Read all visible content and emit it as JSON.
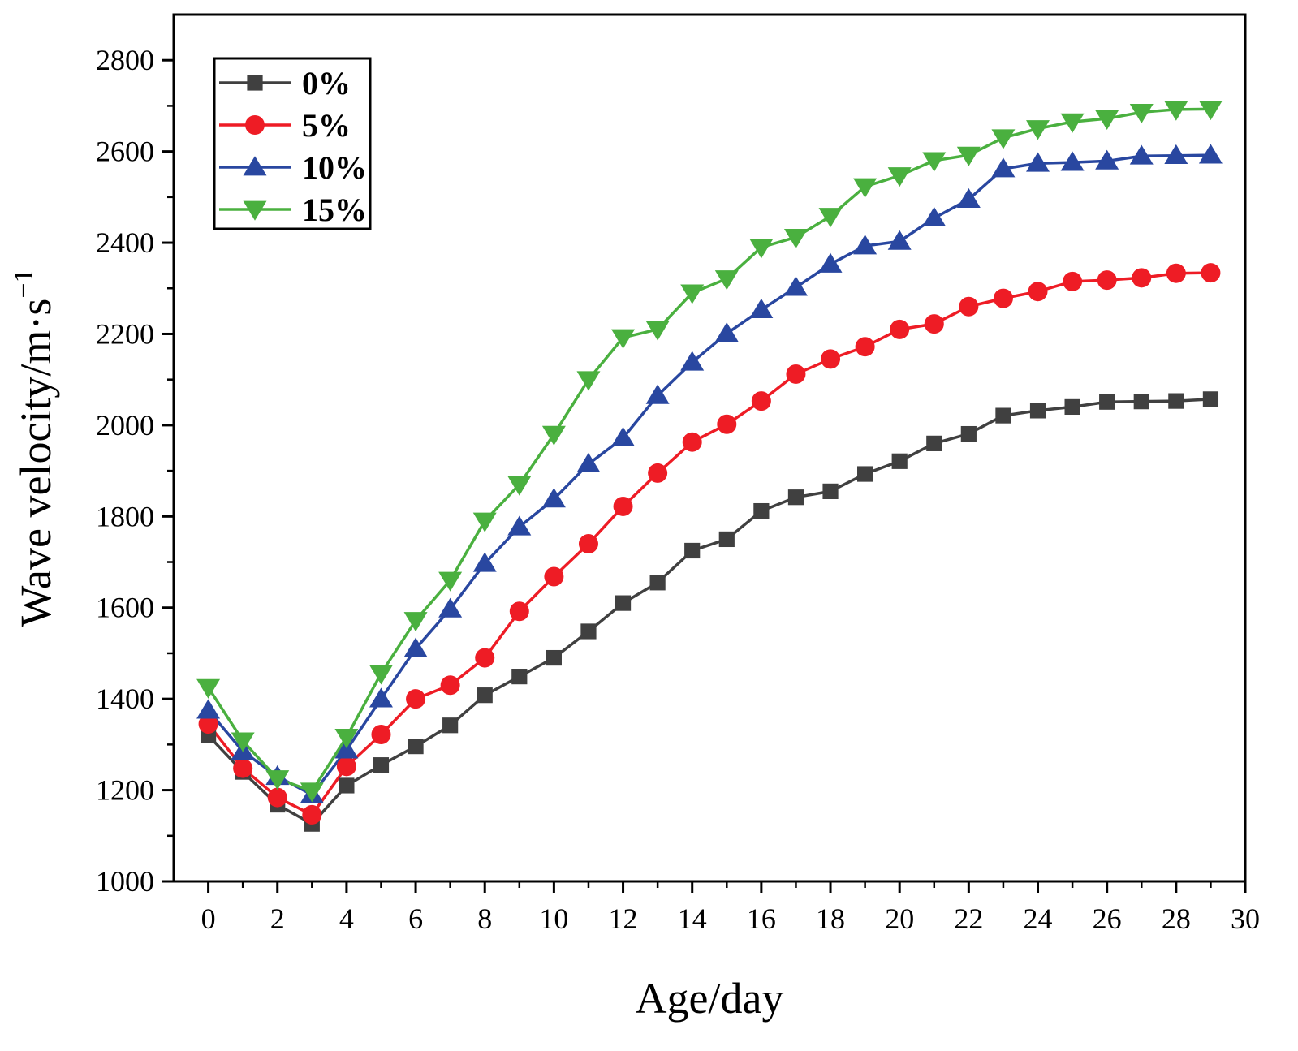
{
  "chart_data": {
    "type": "line",
    "title": "",
    "xlabel": "Age/day",
    "ylabel_main": "Wave velocity/m·s",
    "ylabel_sup": "−1",
    "xlim": [
      -1,
      30
    ],
    "ylim": [
      1000,
      2900
    ],
    "xticks": [
      0,
      2,
      4,
      6,
      8,
      10,
      12,
      14,
      16,
      18,
      20,
      22,
      24,
      26,
      28,
      30
    ],
    "yticks": [
      1000,
      1200,
      1400,
      1600,
      1800,
      2000,
      2200,
      2400,
      2600,
      2800
    ],
    "grid": false,
    "legend_position": "top-left",
    "x": [
      0,
      1,
      2,
      3,
      4,
      5,
      6,
      7,
      8,
      9,
      10,
      11,
      12,
      13,
      14,
      15,
      16,
      17,
      18,
      19,
      20,
      21,
      22,
      23,
      24,
      25,
      26,
      27,
      28,
      29
    ],
    "series": [
      {
        "name": "0%",
        "color": "#404040",
        "marker": "square",
        "values": [
          1320,
          1240,
          1168,
          1126,
          1210,
          1255,
          1296,
          1342,
          1408,
          1449,
          1490,
          1548,
          1610,
          1655,
          1725,
          1750,
          1812,
          1842,
          1855,
          1893,
          1921,
          1960,
          1981,
          2021,
          2032,
          2040,
          2051,
          2052,
          2053,
          2057
        ]
      },
      {
        "name": "5%",
        "color": "#ee1c25",
        "marker": "circle",
        "values": [
          1345,
          1248,
          1184,
          1146,
          1252,
          1322,
          1400,
          1430,
          1490,
          1592,
          1668,
          1740,
          1822,
          1895,
          1963,
          2002,
          2053,
          2112,
          2145,
          2172,
          2210,
          2222,
          2260,
          2278,
          2293,
          2315,
          2318,
          2323,
          2333,
          2334
        ]
      },
      {
        "name": "10%",
        "color": "#2947a0",
        "marker": "triangle-up",
        "values": [
          1375,
          1285,
          1230,
          1190,
          1288,
          1400,
          1510,
          1597,
          1697,
          1777,
          1838,
          1915,
          1972,
          2065,
          2138,
          2201,
          2253,
          2302,
          2353,
          2393,
          2403,
          2454,
          2495,
          2562,
          2574,
          2576,
          2579,
          2590,
          2591,
          2592
        ]
      },
      {
        "name": "15%",
        "color": "#4ab03f",
        "marker": "triangle-down",
        "values": [
          1425,
          1308,
          1225,
          1198,
          1316,
          1456,
          1572,
          1660,
          1790,
          1870,
          1980,
          2100,
          2192,
          2210,
          2290,
          2321,
          2390,
          2412,
          2458,
          2523,
          2547,
          2580,
          2592,
          2630,
          2650,
          2665,
          2672,
          2686,
          2692,
          2693
        ]
      }
    ]
  }
}
